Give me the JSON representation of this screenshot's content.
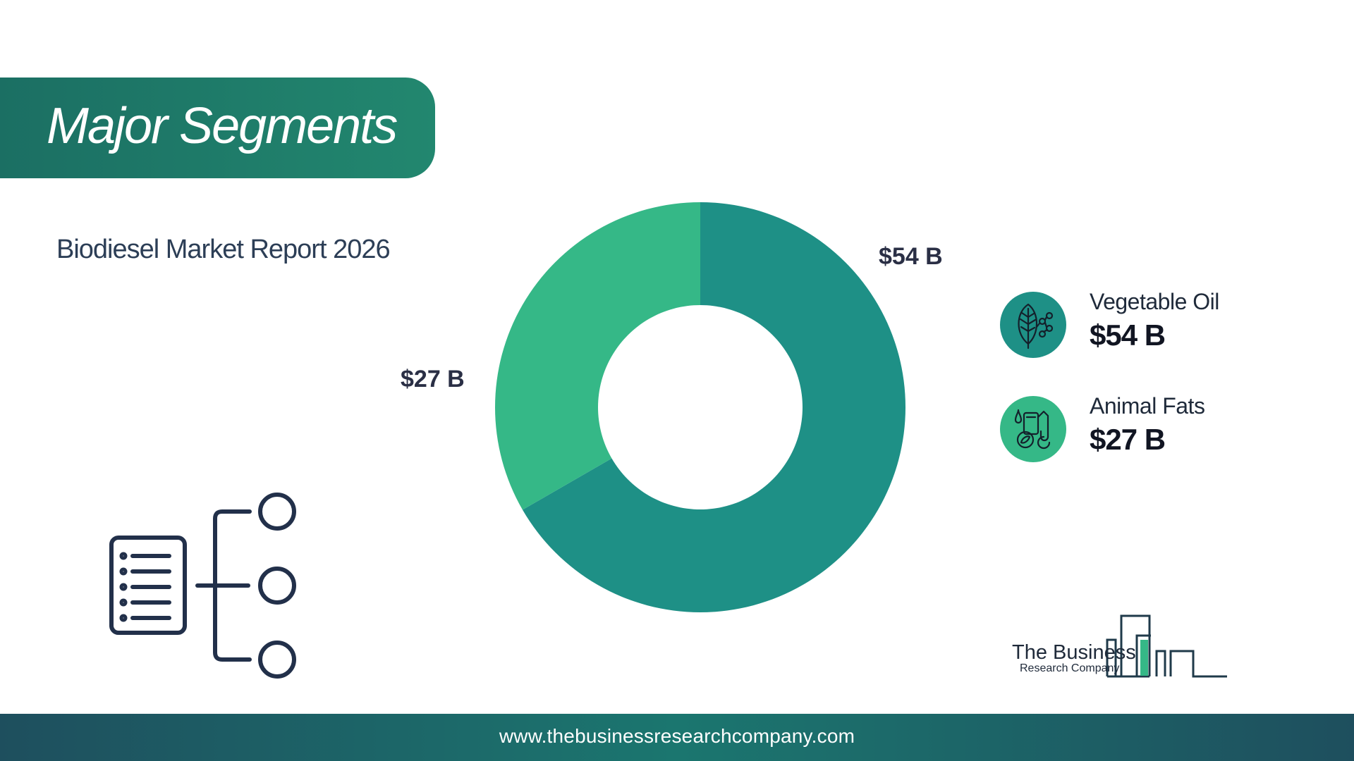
{
  "header": {
    "title": "Major Segments"
  },
  "subtitle": "Biodiesel Market Report 2026",
  "chart_data": {
    "type": "pie",
    "variant": "donut",
    "title": "",
    "unit": "$B",
    "categories": [
      "Vegetable Oil",
      "Animal Fats"
    ],
    "values": [
      54,
      27
    ],
    "data_labels": [
      "$54 B",
      "$27 B"
    ],
    "colors": [
      "#1e9086",
      "#35b887"
    ],
    "legend_position": "right"
  },
  "legend": {
    "items": [
      {
        "label": "Vegetable Oil",
        "value": "$54 B",
        "icon": "leaf-molecule-icon",
        "color": "#1e9086"
      },
      {
        "label": "Animal Fats",
        "value": "$27 B",
        "icon": "fuel-pump-leaf-icon",
        "color": "#35b887"
      }
    ]
  },
  "logo": {
    "line1": "The Business",
    "line2": "Research Company"
  },
  "footer": {
    "url": "www.thebusinessresearchcompany.com"
  }
}
